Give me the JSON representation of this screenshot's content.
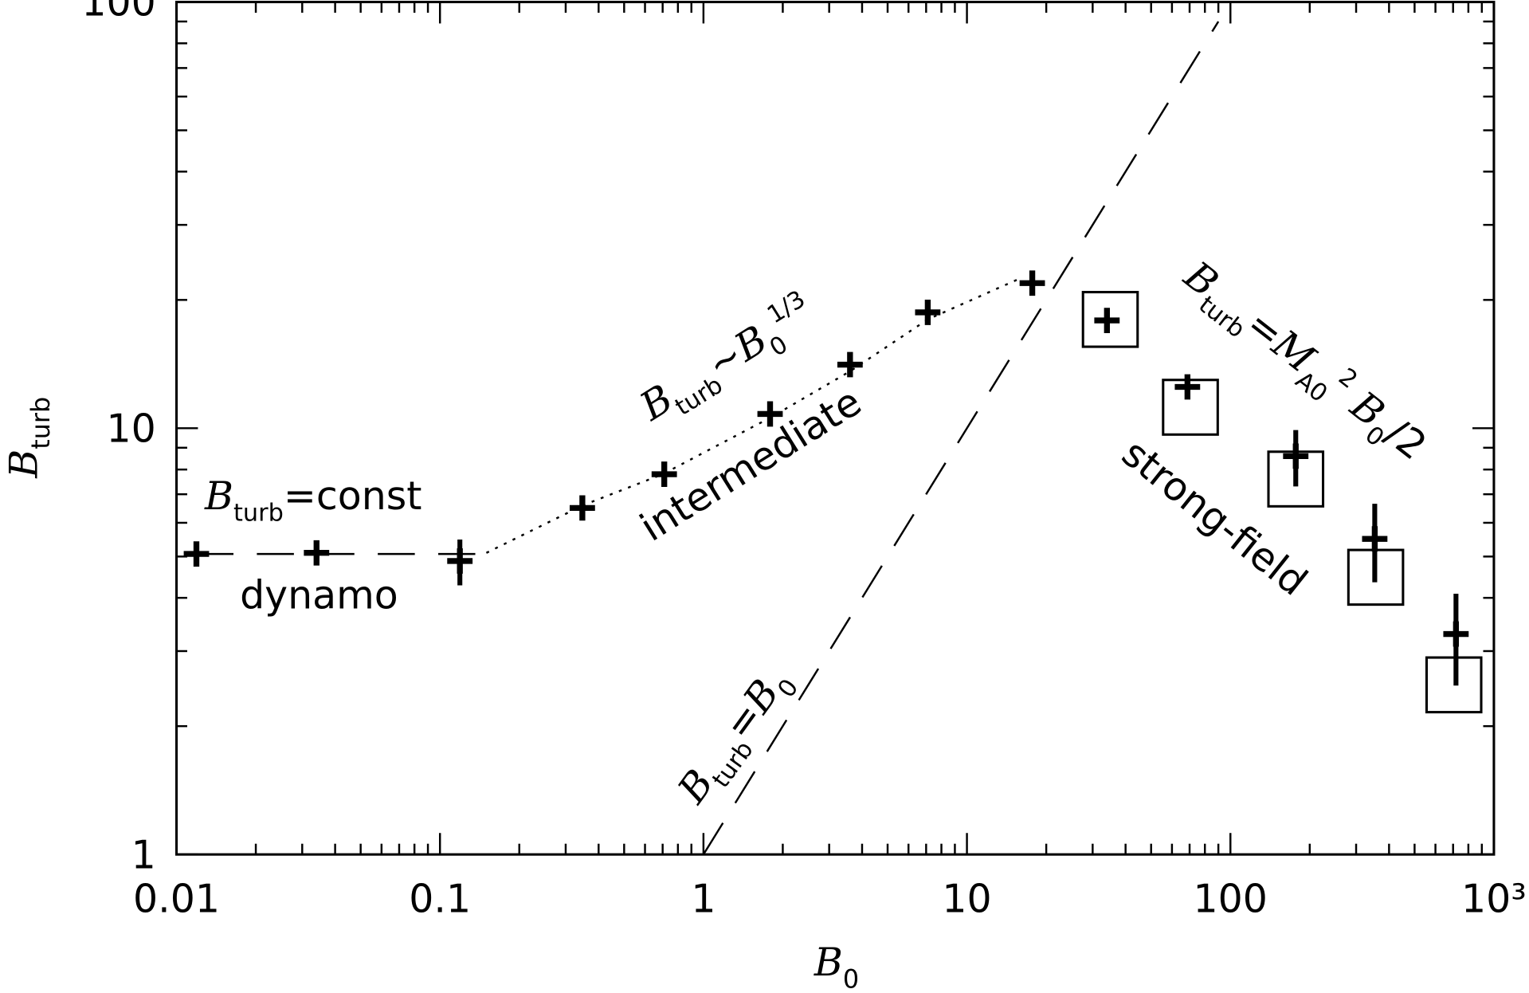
{
  "chart_data": {
    "type": "scatter",
    "xscale": "log",
    "yscale": "log",
    "xlim": [
      0.01,
      1000
    ],
    "ylim": [
      1,
      100
    ],
    "xticks": [
      0.01,
      0.1,
      1,
      10,
      100,
      {
        "value": 1000,
        "label": "10³"
      }
    ],
    "yticks": [
      1,
      10,
      100
    ],
    "xminorticks": [
      0.02,
      0.03,
      0.04,
      0.05,
      0.06,
      0.07,
      0.08,
      0.09,
      0.2,
      0.3,
      0.4,
      0.5,
      0.6,
      0.7,
      0.8,
      0.9,
      2,
      3,
      4,
      5,
      6,
      7,
      8,
      9,
      20,
      30,
      40,
      50,
      60,
      70,
      80,
      90,
      200,
      300,
      400,
      500,
      600,
      700,
      800,
      900
    ],
    "yminorticks": [
      2,
      3,
      4,
      5,
      6,
      7,
      8,
      9,
      20,
      30,
      40,
      50,
      60,
      70,
      80,
      90
    ],
    "color": "#000000",
    "xlabel": {
      "segments": [
        [
          "B",
          "i"
        ],
        [
          "0",
          "sub"
        ]
      ]
    },
    "ylabel": {
      "segments": [
        [
          "B",
          "i"
        ],
        [
          "turb",
          "sub"
        ]
      ]
    },
    "series": [
      {
        "marker": "cross",
        "x": [
          0.0119,
          0.034,
          0.119,
          0.347,
          0.71,
          1.79,
          3.6,
          7.1,
          17.7,
          34,
          68.7,
          177,
          353,
          718
        ],
        "values": [
          5.07,
          5.1,
          4.88,
          6.5,
          7.8,
          10.8,
          14.1,
          18.7,
          21.9,
          17.9,
          12.5,
          8.6,
          5.5,
          3.29
        ],
        "errors": [
          0,
          0,
          0.6,
          0,
          0,
          0,
          0,
          0,
          0,
          0,
          0,
          1.3,
          1.15,
          0.8
        ]
      },
      {
        "marker": "square",
        "x": [
          35,
          70.5,
          177,
          356,
          705
        ],
        "values": [
          18.0,
          11.2,
          7.6,
          4.47,
          2.5
        ]
      },
      {
        "line": "dashed",
        "x": [
          0.0119,
          0.15
        ],
        "values": [
          5.07,
          5.07
        ]
      },
      {
        "line": "dashed",
        "x": [
          1,
          90
        ],
        "values": [
          1,
          90
        ]
      },
      {
        "line": "dotted",
        "x": [
          0.15,
          0.35,
          0.7,
          1.8,
          3.6,
          7.1,
          16
        ],
        "values": [
          5.1,
          6.6,
          7.8,
          10.6,
          13.6,
          18,
          22.5
        ]
      }
    ],
    "annotations": [
      {
        "segments": [
          [
            "B",
            "i"
          ],
          [
            "turb",
            "sub"
          ],
          [
            "=const",
            "n"
          ]
        ]
      },
      {
        "segments": [
          [
            "dynamo",
            "n"
          ]
        ]
      },
      {
        "segments": [
          [
            "B",
            "i"
          ],
          [
            "turb",
            "sub"
          ],
          [
            "~",
            "n"
          ],
          [
            "B",
            "i"
          ],
          [
            "0",
            "sub"
          ],
          [
            "1/3",
            "sup"
          ]
        ]
      },
      {
        "segments": [
          [
            "intermediate",
            "n"
          ]
        ]
      },
      {
        "segments": [
          [
            "B",
            "i"
          ],
          [
            "turb",
            "sub"
          ],
          [
            "=",
            "n"
          ],
          [
            "B",
            "i"
          ],
          [
            "0",
            "sub"
          ]
        ]
      },
      {
        "segments": [
          [
            "B",
            "i"
          ],
          [
            "turb",
            "sub"
          ],
          [
            "=",
            "n"
          ],
          [
            "M",
            "i"
          ],
          [
            "A0",
            "sub"
          ],
          [
            "2",
            "sup"
          ],
          [
            " B",
            "i"
          ],
          [
            "0",
            "sub"
          ],
          [
            "/2",
            "n"
          ]
        ]
      },
      {
        "segments": [
          [
            "strong-field",
            "n"
          ]
        ]
      }
    ]
  }
}
